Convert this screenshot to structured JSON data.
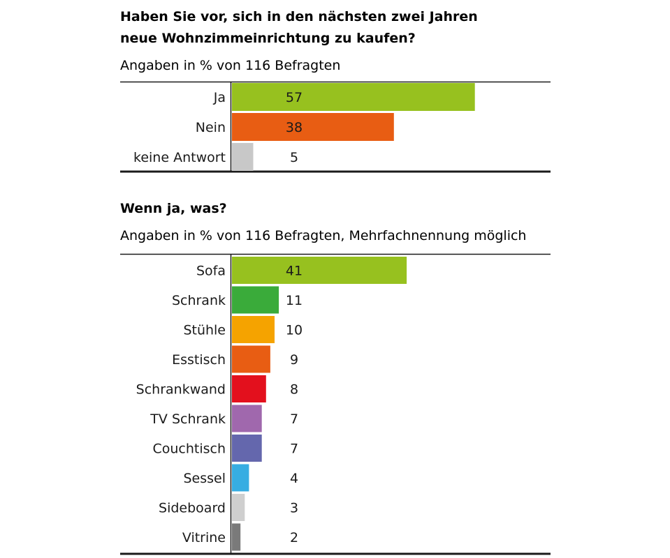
{
  "chart_data": [
    {
      "type": "bar",
      "title_lines": [
        "Haben Sie vor, sich in den nächsten zwei Jahren",
        "neue Wohnzimmeinrichtung zu kaufen?"
      ],
      "subtitle": "Angaben in % von 116 Befragten",
      "orientation": "horizontal",
      "categories": [
        "Ja",
        "Nein",
        "keine Antwort"
      ],
      "values": [
        57,
        38,
        5
      ],
      "colors": [
        "#97c11f",
        "#e85d13",
        "#c8c8c8"
      ],
      "xlim": [
        0,
        100
      ]
    },
    {
      "type": "bar",
      "title_lines": [
        "Wenn ja, was?"
      ],
      "subtitle": "Angaben in % von 116 Befragten, Mehrfachnennung möglich",
      "orientation": "horizontal",
      "categories": [
        "Sofa",
        "Schrank",
        "Stühle",
        "Esstisch",
        "Schrankwand",
        "TV Schrank",
        "Couchtisch",
        "Sessel",
        "Sideboard",
        "Vitrine"
      ],
      "values": [
        41,
        11,
        10,
        9,
        8,
        7,
        7,
        4,
        3,
        2
      ],
      "colors": [
        "#97c11f",
        "#3aab3a",
        "#f5a300",
        "#e85d13",
        "#e3101d",
        "#a068ad",
        "#6467ad",
        "#37ade2",
        "#cfcfcf",
        "#7a7a7a"
      ],
      "xlim": [
        0,
        100
      ]
    }
  ]
}
